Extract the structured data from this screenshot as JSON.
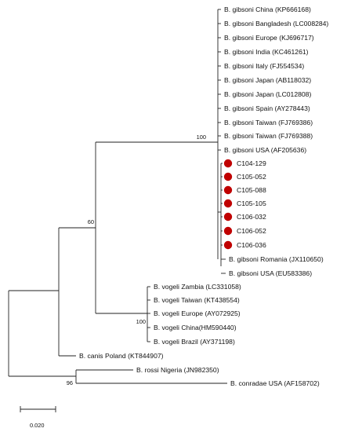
{
  "tree": {
    "leaves": [
      "B. gibsoni China (KP666168)",
      "B. gibsoni Bangladesh (LC008284)",
      "B. gibsoni Europe (KJ696717)",
      "B. gibsoni India (KC461261)",
      "B. gibsoni Italy (FJ554534)",
      "B. gibsoni Japan (AB118032)",
      "B. gibsoni Japan (LC012808)",
      "B. gibsoni Spain (AY278443)",
      "B. gibsoni Taiwan (FJ769386)",
      "B. gibsoni Taiwan (FJ769388)",
      "B. gibsoni USA (AF205636)",
      "C104-129",
      "C105-052",
      "C105-088",
      "C105-105",
      "C106-032",
      "C106-052",
      "C106-036",
      "B. gibsoni Romania (JX110650)",
      "B. gibsoni USA (EU583386)",
      "B. vogeli Zambia (LC331058)",
      "B. vogeli Taiwan (KT438554)",
      "B. vogeli Europe (AY072925)",
      "B. vogeli China(HM590440)",
      "B. vogeli Brazil (AY371198)",
      "B. canis Poland (KT844907)",
      "B. rossi Nigeria (JN982350)",
      "B. conradae USA (AF158702)"
    ],
    "sample_marker_color": "#c00000",
    "support_values": {
      "gibsoni_clade": "100",
      "gibsoni_vogeli": "60",
      "vogeli_clade": "100",
      "rossi_conradae": "96"
    },
    "scale_bar": {
      "label": "0.020"
    }
  }
}
